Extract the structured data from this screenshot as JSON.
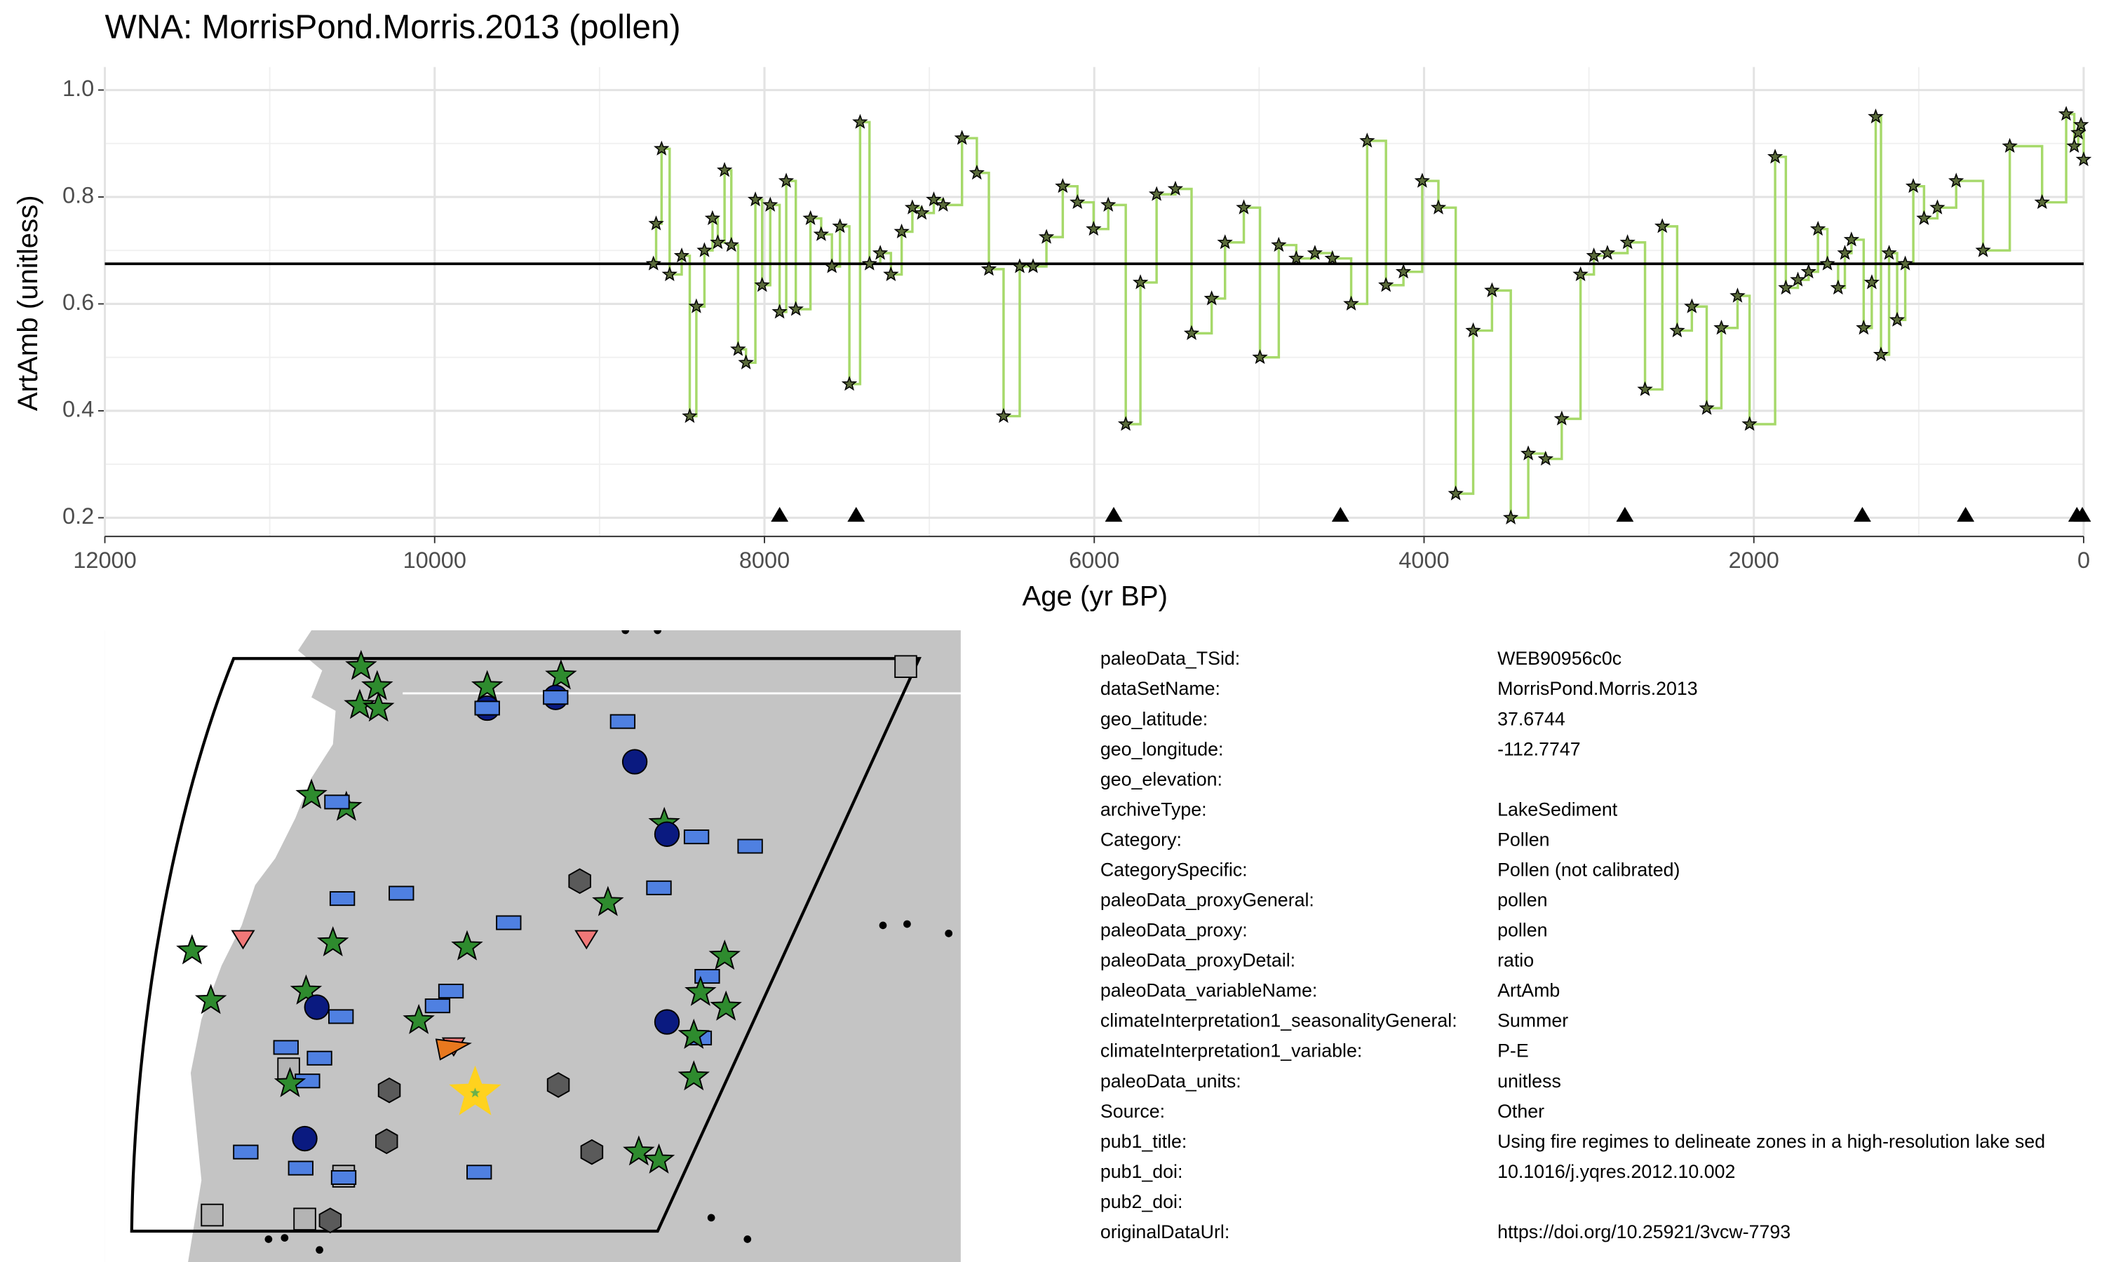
{
  "chart_data": {
    "type": "line",
    "title": "WNA: MorrisPond.Morris.2013 (pollen)",
    "x_label": "Age (yr BP)",
    "y_label": "ArtAmb (unitless)",
    "color": "#a6d96a",
    "marker_color": "#5a6b3a",
    "xlim": [
      12000,
      0
    ],
    "xticks": [
      12000,
      10000,
      8000,
      6000,
      4000,
      2000,
      0
    ],
    "ylim": [
      0.165,
      1.043
    ],
    "yticks": [
      0.2,
      0.4,
      0.6,
      0.8,
      {
        "value": 1,
        "label": "1.0"
      }
    ],
    "grid": true,
    "mean_line": 0.675,
    "chronology_ages": [
      7908,
      7444,
      5882,
      4507,
      2782,
      1342,
      716,
      41,
      8
    ],
    "x": [
      8673,
      8657,
      8624,
      8575,
      8502,
      8453,
      8413,
      8364,
      8315,
      8283,
      8242,
      8201,
      8160,
      8112,
      8055,
      8014,
      7965,
      7908,
      7868,
      7810,
      7721,
      7656,
      7591,
      7542,
      7485,
      7420,
      7363,
      7298,
      7233,
      7168,
      7103,
      7046,
      6973,
      6916,
      6802,
      6712,
      6639,
      6550,
      6452,
      6371,
      6290,
      6191,
      6102,
      6004,
      5915,
      5809,
      5720,
      5622,
      5508,
      5410,
      5288,
      5207,
      5093,
      4995,
      4881,
      4775,
      4662,
      4556,
      4442,
      4345,
      4231,
      4125,
      4011,
      3913,
      3808,
      3702,
      3588,
      3474,
      3368,
      3263,
      3165,
      3051,
      2970,
      2888,
      2766,
      2660,
      2555,
      2465,
      2376,
      2286,
      2197,
      2099,
      2026,
      1871,
      1806,
      1733,
      1668,
      1611,
      1554,
      1489,
      1448,
      1408,
      1334,
      1285,
      1261,
      1229,
      1180,
      1131,
      1082,
      1033,
      968,
      887,
      773,
      610,
      448,
      252,
      106,
      57,
      33,
      16,
      0
    ],
    "values": [
      0.675,
      0.75,
      0.89,
      0.655,
      0.69,
      0.39,
      0.595,
      0.7,
      0.76,
      0.715,
      0.85,
      0.71,
      0.515,
      0.49,
      0.795,
      0.635,
      0.785,
      0.585,
      0.83,
      0.59,
      0.76,
      0.73,
      0.67,
      0.745,
      0.45,
      0.94,
      0.675,
      0.695,
      0.655,
      0.735,
      0.78,
      0.77,
      0.795,
      0.785,
      0.91,
      0.845,
      0.665,
      0.39,
      0.67,
      0.67,
      0.725,
      0.82,
      0.79,
      0.74,
      0.785,
      0.375,
      0.64,
      0.805,
      0.815,
      0.545,
      0.61,
      0.715,
      0.78,
      0.5,
      0.71,
      0.685,
      0.695,
      0.685,
      0.6,
      0.905,
      0.635,
      0.66,
      0.83,
      0.78,
      0.245,
      0.55,
      0.625,
      0.2,
      0.32,
      0.31,
      0.385,
      0.655,
      0.69,
      0.695,
      0.715,
      0.44,
      0.745,
      0.55,
      0.595,
      0.405,
      0.555,
      0.615,
      0.375,
      0.875,
      0.63,
      0.645,
      0.66,
      0.74,
      0.675,
      0.63,
      0.695,
      0.72,
      0.555,
      0.64,
      0.95,
      0.505,
      0.695,
      0.57,
      0.675,
      0.82,
      0.76,
      0.78,
      0.83,
      0.7,
      0.895,
      0.79,
      0.955,
      0.895,
      0.92,
      0.935,
      0.87
    ]
  },
  "metadata": {
    "rows": [
      [
        "paleoData_TSid:",
        "WEB90956c0c"
      ],
      [
        "dataSetName:",
        "MorrisPond.Morris.2013"
      ],
      [
        "geo_latitude:",
        "37.6744"
      ],
      [
        "geo_longitude:",
        "-112.7747"
      ],
      [
        "geo_elevation:",
        null
      ],
      [
        "archiveType:",
        "LakeSediment"
      ],
      [
        "Category:",
        "Pollen"
      ],
      [
        "CategorySpecific:",
        "Pollen (not calibrated)"
      ],
      [
        "paleoData_proxyGeneral:",
        "pollen"
      ],
      [
        "paleoData_proxy:",
        "pollen"
      ],
      [
        "paleoData_proxyDetail:",
        "ratio"
      ],
      [
        "paleoData_variableName:",
        "ArtAmb"
      ],
      [
        "climateInterpretation1_seasonalityGeneral:",
        "Summer"
      ],
      [
        "climateInterpretation1_variable:",
        "P-E"
      ],
      [
        "paleoData_units:",
        "unitless"
      ],
      [
        "Source:",
        "Other"
      ],
      [
        "pub1_title:",
        "Using fire regimes to delineate zones in a high-resolution lake sed"
      ],
      [
        "pub1_doi:",
        "10.1016/j.yqres.2012.10.002"
      ],
      [
        "pub2_doi:",
        null
      ],
      [
        "originalDataUrl:",
        "https://doi.org/10.25921/3vcw-7793"
      ]
    ]
  }
}
